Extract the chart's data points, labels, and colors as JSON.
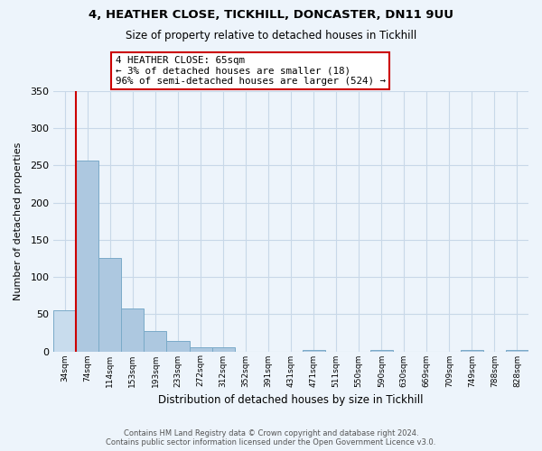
{
  "title1": "4, HEATHER CLOSE, TICKHILL, DONCASTER, DN11 9UU",
  "title2": "Size of property relative to detached houses in Tickhill",
  "xlabel": "Distribution of detached houses by size in Tickhill",
  "ylabel": "Number of detached properties",
  "categories": [
    "34sqm",
    "74sqm",
    "114sqm",
    "153sqm",
    "193sqm",
    "233sqm",
    "272sqm",
    "312sqm",
    "352sqm",
    "391sqm",
    "431sqm",
    "471sqm",
    "511sqm",
    "550sqm",
    "590sqm",
    "630sqm",
    "669sqm",
    "709sqm",
    "749sqm",
    "788sqm",
    "828sqm"
  ],
  "values": [
    55,
    257,
    126,
    58,
    27,
    14,
    5,
    5,
    0,
    0,
    0,
    2,
    0,
    0,
    2,
    0,
    0,
    0,
    2,
    0,
    2
  ],
  "bar_color": "#adc8e0",
  "bar_edge_color": "#7aaac8",
  "highlight_bar_index": 0,
  "highlight_color": "#c8dced",
  "highlight_edge_color": "#7aaac8",
  "subject_line_color": "#cc0000",
  "ylim": [
    0,
    350
  ],
  "yticks": [
    0,
    50,
    100,
    150,
    200,
    250,
    300,
    350
  ],
  "annotation_title": "4 HEATHER CLOSE: 65sqm",
  "annotation_line1": "← 3% of detached houses are smaller (18)",
  "annotation_line2": "96% of semi-detached houses are larger (524) →",
  "annotation_box_color": "#ffffff",
  "annotation_box_edge": "#cc0000",
  "footer1": "Contains HM Land Registry data © Crown copyright and database right 2024.",
  "footer2": "Contains public sector information licensed under the Open Government Licence v3.0.",
  "grid_color": "#c8d8e8",
  "background_color": "#edf4fb"
}
